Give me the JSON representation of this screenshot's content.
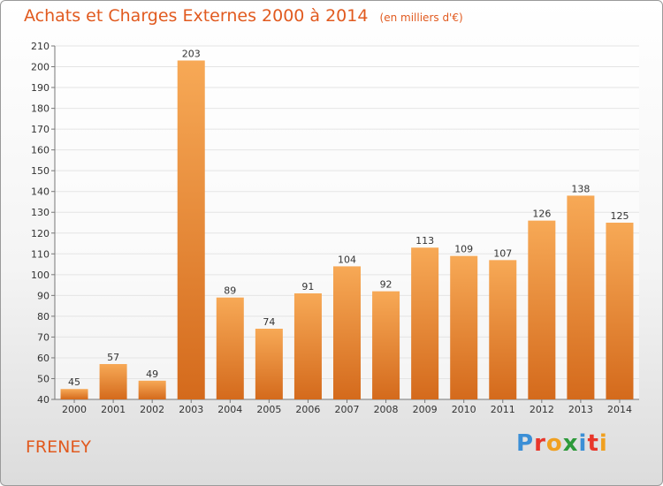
{
  "title": "Achats et Charges Externes 2000 à 2014",
  "subtitle": "(en milliers d'€)",
  "commune": "FRENEY",
  "logo": {
    "text": "Proxiti",
    "letter_colors": [
      "#3b8fd6",
      "#e8362a",
      "#f0a020",
      "#2d9a3a",
      "#3b8fd6",
      "#e8362a",
      "#f0a020"
    ]
  },
  "colors": {
    "bar_light": "#f7a956",
    "bar_dark": "#d46a1c",
    "text": "#333333",
    "grid": "#e4e4e4",
    "title": "#e15a1f"
  },
  "chart_data": {
    "type": "bar",
    "categories": [
      "2000",
      "2001",
      "2002",
      "2003",
      "2004",
      "2005",
      "2006",
      "2007",
      "2008",
      "2009",
      "2010",
      "2011",
      "2012",
      "2013",
      "2014"
    ],
    "values": [
      45,
      57,
      49,
      203,
      89,
      74,
      91,
      104,
      92,
      113,
      109,
      107,
      126,
      138,
      125
    ],
    "y_ticks": [
      40,
      50,
      60,
      70,
      80,
      90,
      100,
      110,
      120,
      130,
      140,
      150,
      160,
      170,
      180,
      190,
      200,
      210
    ],
    "ylim": [
      40,
      210
    ],
    "grid": true,
    "legend": "none"
  }
}
